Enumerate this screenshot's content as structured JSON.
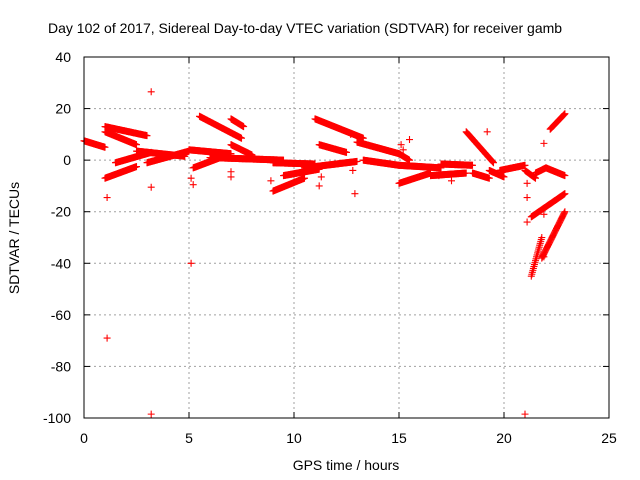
{
  "chart_data": {
    "type": "scatter",
    "title": "Day 102 of 2017, Sidereal Day-to-day VTEC variation (SDTVAR) for receiver gamb",
    "xlabel": "GPS time / hours",
    "ylabel": "SDTVAR / TECUs",
    "xlim": [
      0,
      25
    ],
    "ylim": [
      -100,
      40
    ],
    "xticks": [
      0,
      5,
      10,
      15,
      20,
      25
    ],
    "xtick_labels": [
      "0",
      "5",
      "10",
      "15",
      "20",
      "25"
    ],
    "yticks": [
      40,
      20,
      0,
      -20,
      -40,
      -60,
      -80,
      -100
    ],
    "ytick_labels": [
      "40",
      "20",
      "0",
      "-20",
      "-40",
      "-60",
      "-80",
      "-100"
    ],
    "grid": true,
    "marker": "+",
    "color": "#ff0000",
    "segments": [
      {
        "x0": 0.0,
        "y0": 7.5,
        "x1": 1.0,
        "y1": 5.0
      },
      {
        "x0": 1.0,
        "y0": 13.0,
        "x1": 3.0,
        "y1": 9.5
      },
      {
        "x0": 1.0,
        "y0": 11.0,
        "x1": 2.5,
        "y1": 6.0
      },
      {
        "x0": 1.0,
        "y0": -7.0,
        "x1": 2.5,
        "y1": -2.5
      },
      {
        "x0": 1.5,
        "y0": -1.0,
        "x1": 3.2,
        "y1": 3.0
      },
      {
        "x0": 2.5,
        "y0": 3.5,
        "x1": 4.8,
        "y1": 1.5
      },
      {
        "x0": 3.0,
        "y0": -1.0,
        "x1": 5.0,
        "y1": 3.5
      },
      {
        "x0": 5.0,
        "y0": 4.0,
        "x1": 7.0,
        "y1": 2.5
      },
      {
        "x0": 5.2,
        "y0": -3.0,
        "x1": 6.5,
        "y1": 1.0
      },
      {
        "x0": 5.5,
        "y0": 17.0,
        "x1": 7.5,
        "y1": 8.5
      },
      {
        "x0": 6.0,
        "y0": 1.0,
        "x1": 9.5,
        "y1": 0.0
      },
      {
        "x0": 7.0,
        "y0": 16.0,
        "x1": 7.6,
        "y1": 13.0
      },
      {
        "x0": 7.0,
        "y0": 6.0,
        "x1": 8.0,
        "y1": 2.0
      },
      {
        "x0": 9.0,
        "y0": -1.0,
        "x1": 11.0,
        "y1": -1.5
      },
      {
        "x0": 9.0,
        "y0": -12.0,
        "x1": 10.5,
        "y1": -7.0
      },
      {
        "x0": 9.5,
        "y0": -6.0,
        "x1": 11.2,
        "y1": -3.5
      },
      {
        "x0": 10.5,
        "y0": -3.0,
        "x1": 13.0,
        "y1": -0.5
      },
      {
        "x0": 11.0,
        "y0": 16.0,
        "x1": 13.3,
        "y1": 8.5
      },
      {
        "x0": 11.2,
        "y0": 6.0,
        "x1": 12.5,
        "y1": 3.0
      },
      {
        "x0": 13.0,
        "y0": 7.0,
        "x1": 15.0,
        "y1": 2.5
      },
      {
        "x0": 13.3,
        "y0": 0.0,
        "x1": 15.0,
        "y1": -2.0
      },
      {
        "x0": 15.0,
        "y0": -2.0,
        "x1": 17.0,
        "y1": -3.0
      },
      {
        "x0": 15.0,
        "y0": -9.0,
        "x1": 16.5,
        "y1": -5.0
      },
      {
        "x0": 15.0,
        "y0": 2.5,
        "x1": 15.5,
        "y1": 0.0
      },
      {
        "x0": 16.5,
        "y0": -6.0,
        "x1": 18.2,
        "y1": -5.0
      },
      {
        "x0": 17.0,
        "y0": -1.5,
        "x1": 18.5,
        "y1": -2.0
      },
      {
        "x0": 18.2,
        "y0": 11.0,
        "x1": 19.5,
        "y1": -1.0
      },
      {
        "x0": 18.5,
        "y0": -5.0,
        "x1": 19.3,
        "y1": -7.0
      },
      {
        "x0": 19.3,
        "y0": -4.0,
        "x1": 20.0,
        "y1": -6.5
      },
      {
        "x0": 19.8,
        "y0": -4.0,
        "x1": 21.0,
        "y1": -2.0
      },
      {
        "x0": 21.0,
        "y0": -4.0,
        "x1": 21.5,
        "y1": -7.0
      },
      {
        "x0": 21.5,
        "y0": -5.0,
        "x1": 22.0,
        "y1": -3.0
      },
      {
        "x0": 21.3,
        "y0": -45.0,
        "x1": 21.8,
        "y1": -30.0
      },
      {
        "x0": 21.8,
        "y0": -38.0,
        "x1": 22.9,
        "y1": -20.0
      },
      {
        "x0": 21.3,
        "y0": -22.0,
        "x1": 22.9,
        "y1": -13.0
      },
      {
        "x0": 22.0,
        "y0": -3.0,
        "x1": 22.9,
        "y1": -6.0
      },
      {
        "x0": 22.2,
        "y0": 12.0,
        "x1": 22.9,
        "y1": 18.0
      }
    ],
    "outliers": [
      {
        "x": 1.1,
        "y": -69
      },
      {
        "x": 3.2,
        "y": 26.5
      },
      {
        "x": 3.2,
        "y": -98.5
      },
      {
        "x": 5.1,
        "y": -40
      },
      {
        "x": 21.0,
        "y": -98.5
      },
      {
        "x": 1.1,
        "y": -14.5
      },
      {
        "x": 3.2,
        "y": -10.5
      },
      {
        "x": 5.2,
        "y": -9.5
      },
      {
        "x": 5.1,
        "y": -7
      },
      {
        "x": 7.0,
        "y": -6.5
      },
      {
        "x": 7.0,
        "y": -4.5
      },
      {
        "x": 8.9,
        "y": -8
      },
      {
        "x": 11.2,
        "y": -10
      },
      {
        "x": 11.3,
        "y": -6.5
      },
      {
        "x": 12.9,
        "y": -13
      },
      {
        "x": 12.8,
        "y": -4
      },
      {
        "x": 12.7,
        "y": 10
      },
      {
        "x": 15.1,
        "y": 6
      },
      {
        "x": 15.5,
        "y": 8
      },
      {
        "x": 15.2,
        "y": 4
      },
      {
        "x": 16.9,
        "y": -6
      },
      {
        "x": 17.5,
        "y": -8
      },
      {
        "x": 19.2,
        "y": 11
      },
      {
        "x": 21.1,
        "y": -9
      },
      {
        "x": 21.1,
        "y": -14.5
      },
      {
        "x": 21.1,
        "y": -24
      },
      {
        "x": 21.9,
        "y": -21
      },
      {
        "x": 21.9,
        "y": 6.5
      },
      {
        "x": 21.9,
        "y": -37.5
      }
    ]
  }
}
